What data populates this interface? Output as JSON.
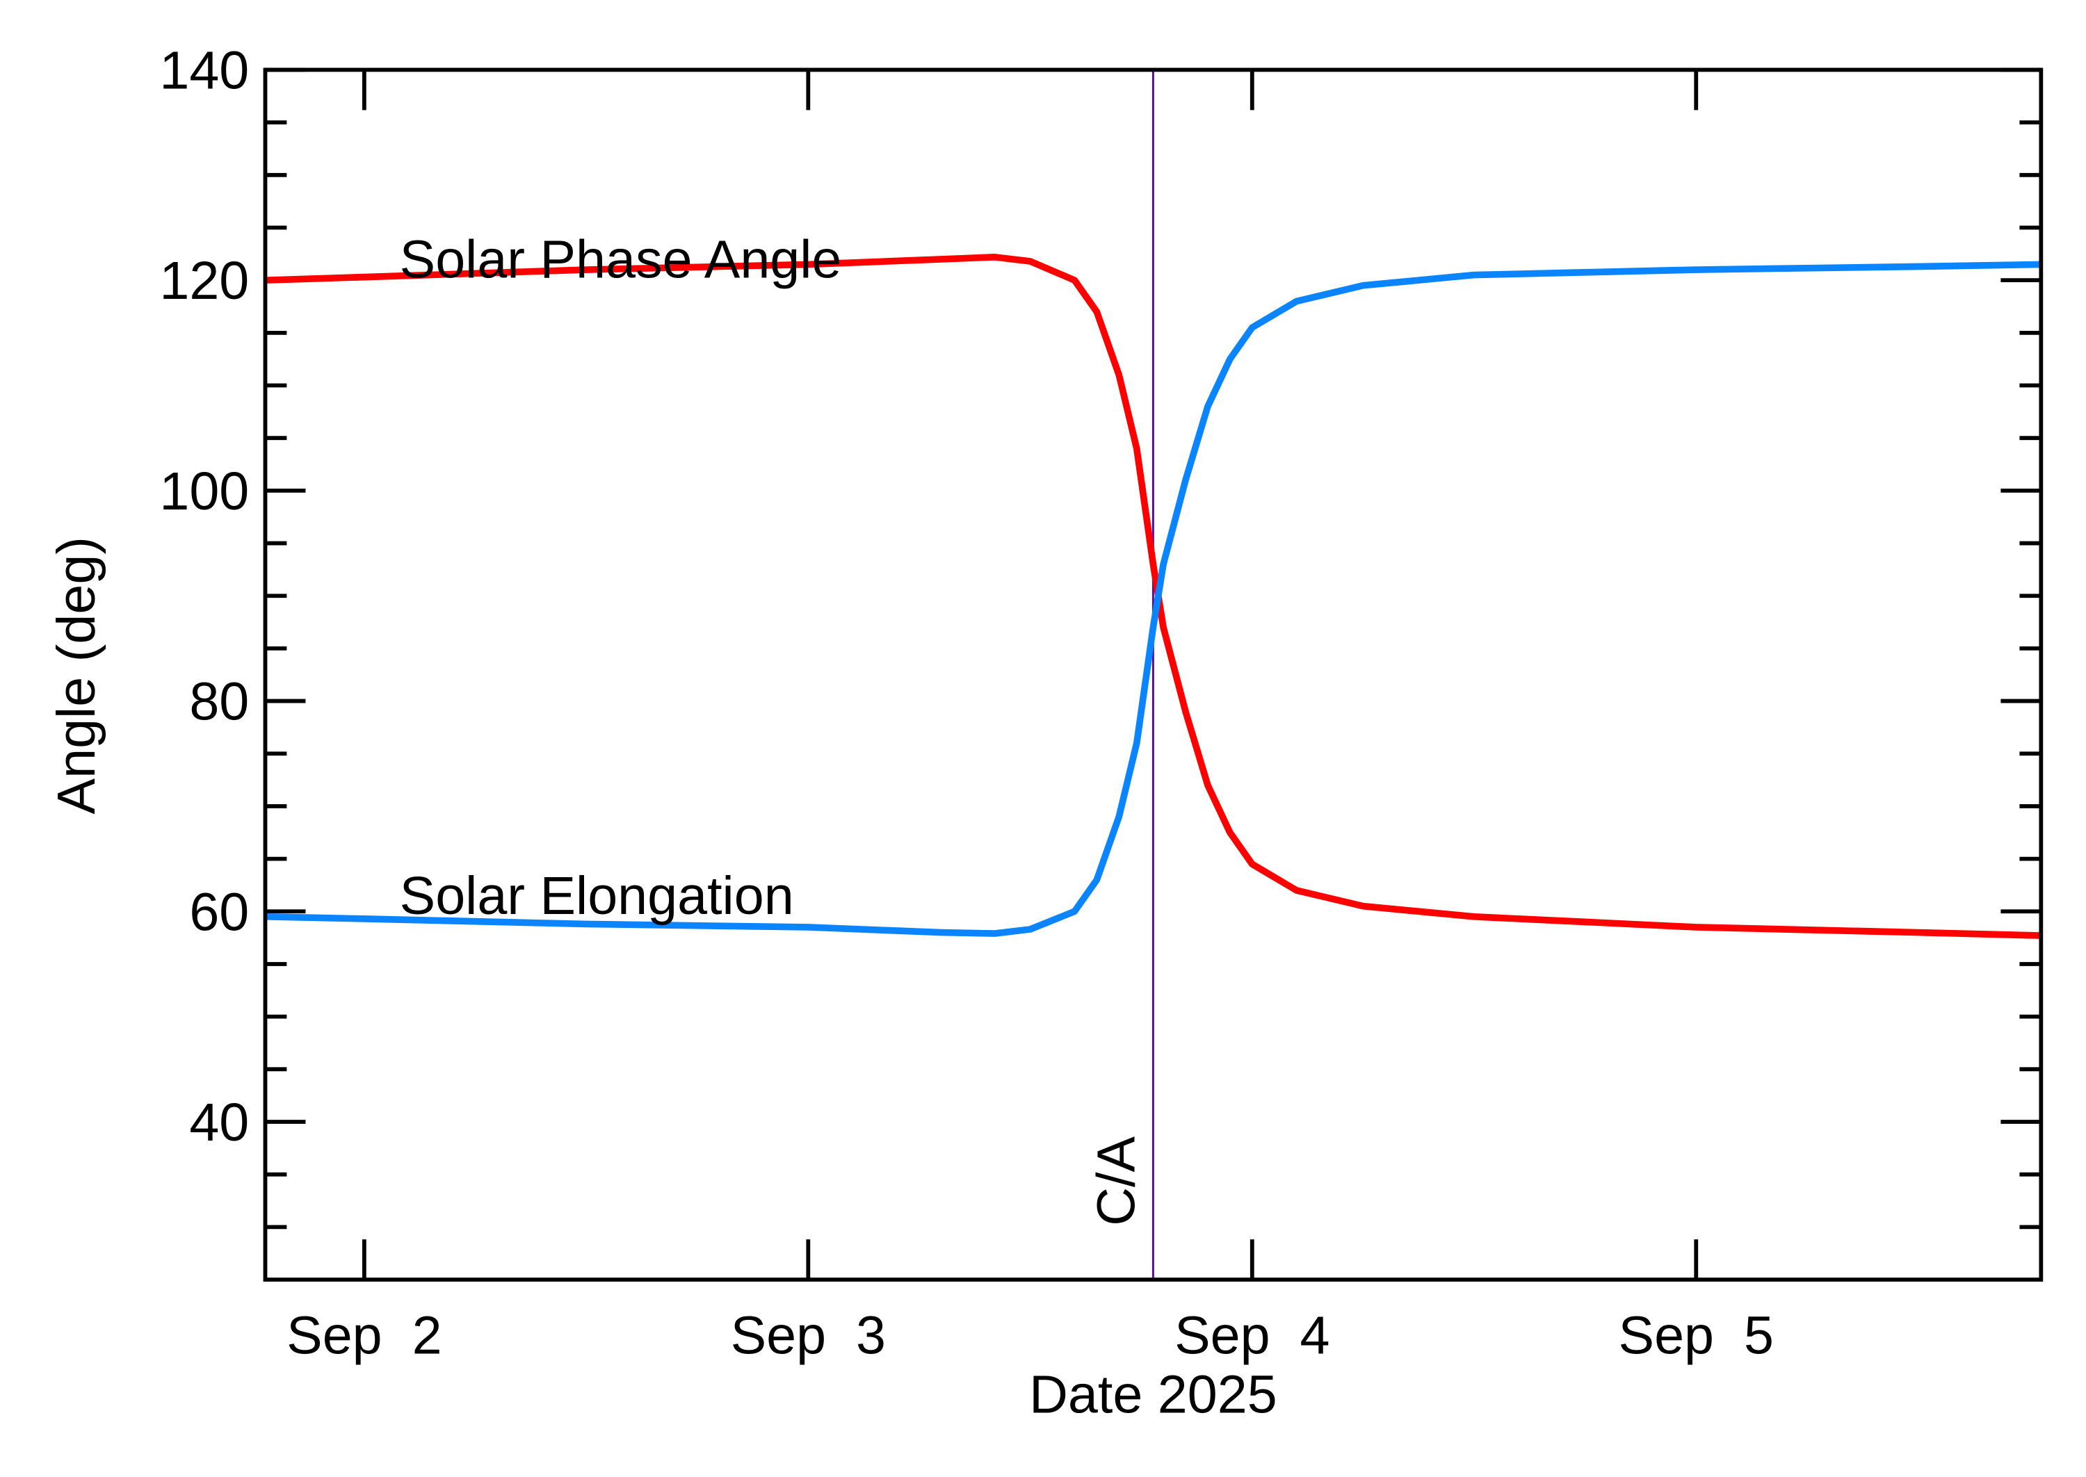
{
  "chart_data": {
    "type": "line",
    "xlabel": "Date 2025",
    "ylabel": "Angle (deg)",
    "x": [
      1.777,
      2.0,
      2.5,
      3.0,
      3.3,
      3.42,
      3.5,
      3.6,
      3.65,
      3.7,
      3.74,
      3.777,
      3.8,
      3.85,
      3.9,
      3.95,
      4.0,
      4.1,
      4.25,
      4.5,
      5.0,
      5.5,
      5.777
    ],
    "series": [
      {
        "name": "Solar Phase Angle",
        "color": "#ff0000",
        "values": [
          120,
          120.3,
          121,
          121.5,
          122,
          122.2,
          121.8,
          120,
          117,
          111,
          104,
          93,
          87,
          79,
          72,
          67.5,
          64.5,
          62,
          60.5,
          59.5,
          58.5,
          58,
          57.7
        ]
      },
      {
        "name": "Solar Elongation",
        "color": "#0a84ff",
        "values": [
          59.5,
          59.3,
          58.8,
          58.5,
          58,
          57.9,
          58.3,
          60,
          63,
          69,
          76,
          87,
          93,
          101,
          108,
          112.5,
          115.5,
          118,
          119.5,
          120.5,
          121,
          121.3,
          121.5
        ]
      }
    ],
    "annotations": [
      {
        "text": "C/A",
        "x": 3.777,
        "color": "#5500cc"
      }
    ],
    "xlim": [
      1.777,
      5.777
    ],
    "xticks": [
      {
        "value": 2,
        "label": "Sep  2"
      },
      {
        "value": 3,
        "label": "Sep  3"
      },
      {
        "value": 4,
        "label": "Sep  4"
      },
      {
        "value": 5,
        "label": "Sep  5"
      }
    ],
    "ylim": [
      25,
      140
    ],
    "yticks": [
      40,
      60,
      80,
      100,
      120,
      140
    ],
    "yminorticks": [
      30,
      35,
      45,
      50,
      55,
      65,
      70,
      75,
      85,
      90,
      95,
      105,
      110,
      115,
      125,
      130,
      135
    ],
    "grid": false
  }
}
